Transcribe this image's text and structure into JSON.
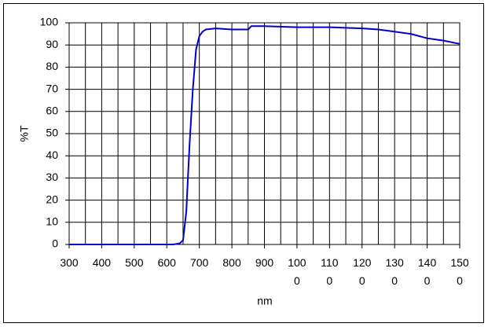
{
  "chart_data": {
    "type": "line",
    "x_label": "nm",
    "y_label": "%T",
    "xlim": [
      300,
      1500
    ],
    "xticks": [
      300,
      400,
      500,
      600,
      700,
      800,
      900,
      1000,
      1100,
      1200,
      1300,
      1400,
      1500
    ],
    "ylim": [
      0,
      100
    ],
    "yticks": [
      0,
      10,
      20,
      30,
      40,
      50,
      60,
      70,
      80,
      90,
      100
    ],
    "grid": true,
    "series": [
      {
        "color": "#0000cc",
        "x": [
          300,
          400,
          500,
          600,
          620,
          640,
          650,
          660,
          670,
          680,
          690,
          700,
          710,
          720,
          750,
          800,
          850,
          860,
          900,
          1000,
          1100,
          1200,
          1250,
          1300,
          1350,
          1400,
          1450,
          1500
        ],
        "values": [
          0,
          0,
          0,
          0,
          0,
          0.5,
          2,
          15,
          45,
          70,
          88,
          94,
          96,
          97,
          97.5,
          97,
          97,
          98.5,
          98.5,
          98,
          98,
          97.5,
          97,
          96,
          95,
          93,
          92,
          90.5
        ]
      }
    ]
  }
}
